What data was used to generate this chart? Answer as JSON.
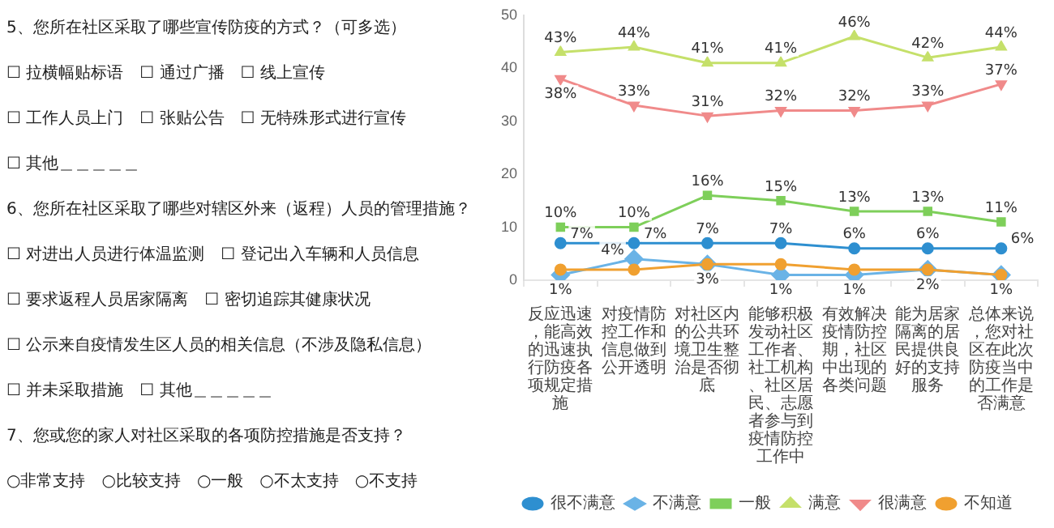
{
  "chart_data": {
    "type": "line",
    "annotations": [
      "5、您所在社区采取了哪些宣传防疫的方式？（可多选）",
      "☐ 拉横幅贴标语　☐ 通过广播　☐ 线上宣传",
      "☐ 工作人员上门　☐ 张贴公告　☐ 无特殊形式进行宣传",
      "☐ 其他＿＿＿＿＿",
      "6、您所在社区采取了哪些对辖区外来（返程）人员的管理措施？",
      "☐ 对进出人员进行体温监测　☐ 登记出入车辆和人员信息",
      "☐ 要求返程人员居家隔离　☐ 密切追踪其健康状况",
      "☐ 公示来自疫情发生区人员的相关信息（不涉及隐私信息）",
      "☐ 并未采取措施　☐ 其他＿＿＿＿＿",
      "7、您或您的家人对社区采取的各项防控措施是否支持？",
      "○非常支持　○比较支持　○一般　○不太支持　○不支持"
    ],
    "categories": [
      "反应迅速，能高效的迅速执行防疫各项规定措施",
      "对疫情防控工作和信息做到公开透明",
      "对社区内的公共环境卫生整治是否彻底",
      "能够积极发动社区工作者、社工机构、社区居民、志愿者参与到疫情防控工作中",
      "有效解决疫情防控期，社区中出现的各类问题",
      "能为居家隔离的居民提供良好的支持服务",
      "总体来说，您对社区在此次防疫当中的工作是否满意"
    ],
    "series": [
      {
        "name": "很不满意",
        "color": "#2e8fd0",
        "marker": "circle",
        "values": [
          7,
          7,
          7,
          7,
          6,
          6,
          6
        ],
        "value_labels": [
          "7%",
          "7%",
          "7%",
          "7%",
          "6%",
          "6%",
          "6%"
        ]
      },
      {
        "name": "不满意",
        "color": "#6ab3e6",
        "marker": "diamond",
        "values": [
          1,
          4,
          3,
          1,
          1,
          2,
          1
        ],
        "value_labels": [
          "1%",
          "4%",
          null,
          "1%",
          "1%",
          null,
          "1%"
        ]
      },
      {
        "name": "一般",
        "color": "#7ecf5a",
        "marker": "square",
        "values": [
          10,
          10,
          16,
          15,
          13,
          13,
          11
        ],
        "value_labels": [
          "10%",
          "10%",
          "16%",
          "15%",
          "13%",
          "13%",
          "11%"
        ]
      },
      {
        "name": "满意",
        "color": "#c5e06a",
        "marker": "triangle",
        "values": [
          43,
          44,
          41,
          41,
          46,
          42,
          44
        ],
        "value_labels": [
          "43%",
          "44%",
          "41%",
          "41%",
          "46%",
          "42%",
          "44%"
        ]
      },
      {
        "name": "很满意",
        "color": "#f08a8a",
        "marker": "triangle-down",
        "values": [
          38,
          33,
          31,
          32,
          32,
          33,
          37
        ],
        "value_labels": [
          "38%",
          "33%",
          "31%",
          "32%",
          "32%",
          "33%",
          "37%"
        ]
      },
      {
        "name": "不知道",
        "color": "#f0a030",
        "marker": "circle",
        "values": [
          2,
          2,
          3,
          3,
          2,
          2,
          1
        ],
        "value_labels": [
          null,
          null,
          "3%",
          null,
          null,
          "2%",
          null
        ]
      }
    ],
    "ylim": [
      0,
      50
    ],
    "yticks": [
      0,
      10,
      20,
      30,
      40,
      50
    ],
    "grid": false,
    "legend": "bottom"
  }
}
